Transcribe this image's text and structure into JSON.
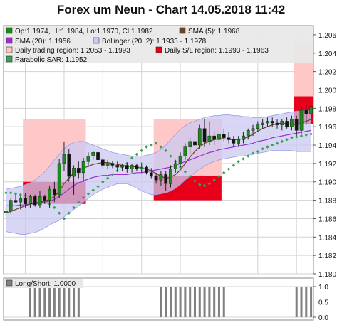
{
  "page": {
    "title": "Forex um Neun - Chart 14.05.2018 11:42"
  },
  "colors": {
    "plot_bg": "#ffffff",
    "frame_bg": "#e8e8e8",
    "grid": "#d3d3d3",
    "candle_up": "#1a8a1a",
    "candle_down": "#111111",
    "sma5": "#6b4226",
    "sma20": "#9b30d0",
    "bollinger_fill": "#c9c9f2",
    "bollinger_edge": "#9a9ae6",
    "trading_region": "#ffc8c8",
    "sl_region": "#e8001a",
    "sar": "#3aa05a",
    "longshort": "#808080"
  },
  "chart_data": [
    {
      "type": "candlestick",
      "title": "Forex um Neun - Chart 14.05.2018 11:42",
      "legend": {
        "ohlc": "Op:1.1974, Hi:1.1984, Lo:1.1970, Cl:1.1982",
        "sma5": "SMA (5): 1.1968",
        "sma20": "SMA (20): 1.1956",
        "bollinger": "Bollinger (20, 2): 1.1933 - 1.1978",
        "trading_region": "Daily trading region: 1.2053 - 1.1993",
        "sl_region": "Daily S/L region: 1.1993 - 1.1963",
        "sar": "Parabolic SAR: 1.1952"
      },
      "ylim": [
        1.18,
        1.207
      ],
      "yticks": [
        "1.180",
        "1.182",
        "1.184",
        "1.186",
        "1.188",
        "1.190",
        "1.192",
        "1.194",
        "1.196",
        "1.198",
        "1.200",
        "1.202",
        "1.204",
        "1.206"
      ],
      "grid": true,
      "candles": [
        {
          "o": 1.1866,
          "h": 1.1873,
          "l": 1.1862,
          "c": 1.1868
        },
        {
          "o": 1.1868,
          "h": 1.1883,
          "l": 1.1865,
          "c": 1.188
        },
        {
          "o": 1.188,
          "h": 1.1886,
          "l": 1.1877,
          "c": 1.1878
        },
        {
          "o": 1.1878,
          "h": 1.1885,
          "l": 1.187,
          "c": 1.1882
        },
        {
          "o": 1.1882,
          "h": 1.1888,
          "l": 1.1872,
          "c": 1.1876
        },
        {
          "o": 1.1876,
          "h": 1.1886,
          "l": 1.1872,
          "c": 1.1884
        },
        {
          "o": 1.1884,
          "h": 1.1886,
          "l": 1.1873,
          "c": 1.1875
        },
        {
          "o": 1.1875,
          "h": 1.189,
          "l": 1.1872,
          "c": 1.1884
        },
        {
          "o": 1.1884,
          "h": 1.1886,
          "l": 1.1876,
          "c": 1.188
        },
        {
          "o": 1.188,
          "h": 1.1896,
          "l": 1.1872,
          "c": 1.1892
        },
        {
          "o": 1.1892,
          "h": 1.19,
          "l": 1.1878,
          "c": 1.1886
        },
        {
          "o": 1.1886,
          "h": 1.1925,
          "l": 1.1882,
          "c": 1.192
        },
        {
          "o": 1.192,
          "h": 1.1944,
          "l": 1.1912,
          "c": 1.193
        },
        {
          "o": 1.193,
          "h": 1.1936,
          "l": 1.19,
          "c": 1.1906
        },
        {
          "o": 1.1906,
          "h": 1.1918,
          "l": 1.1886,
          "c": 1.1915
        },
        {
          "o": 1.1915,
          "h": 1.1922,
          "l": 1.1904,
          "c": 1.191
        },
        {
          "o": 1.191,
          "h": 1.1926,
          "l": 1.19,
          "c": 1.1922
        },
        {
          "o": 1.1922,
          "h": 1.1932,
          "l": 1.1916,
          "c": 1.1928
        },
        {
          "o": 1.1928,
          "h": 1.1934,
          "l": 1.1924,
          "c": 1.1932
        },
        {
          "o": 1.1932,
          "h": 1.1934,
          "l": 1.192,
          "c": 1.1924
        },
        {
          "o": 1.1924,
          "h": 1.1926,
          "l": 1.1914,
          "c": 1.1918
        },
        {
          "o": 1.1918,
          "h": 1.1924,
          "l": 1.1914,
          "c": 1.192
        },
        {
          "o": 1.192,
          "h": 1.1923,
          "l": 1.1915,
          "c": 1.1918
        },
        {
          "o": 1.1918,
          "h": 1.1922,
          "l": 1.1912,
          "c": 1.1916
        },
        {
          "o": 1.1916,
          "h": 1.192,
          "l": 1.1912,
          "c": 1.1918
        },
        {
          "o": 1.1918,
          "h": 1.1921,
          "l": 1.191,
          "c": 1.1914
        },
        {
          "o": 1.1914,
          "h": 1.192,
          "l": 1.191,
          "c": 1.1918
        },
        {
          "o": 1.1918,
          "h": 1.192,
          "l": 1.1912,
          "c": 1.1914
        },
        {
          "o": 1.1914,
          "h": 1.1921,
          "l": 1.191,
          "c": 1.1916
        },
        {
          "o": 1.1916,
          "h": 1.1918,
          "l": 1.1908,
          "c": 1.191
        },
        {
          "o": 1.191,
          "h": 1.1915,
          "l": 1.1904,
          "c": 1.1906
        },
        {
          "o": 1.1906,
          "h": 1.191,
          "l": 1.1898,
          "c": 1.1902
        },
        {
          "o": 1.1902,
          "h": 1.1912,
          "l": 1.1896,
          "c": 1.1908
        },
        {
          "o": 1.1908,
          "h": 1.1912,
          "l": 1.189,
          "c": 1.1898
        },
        {
          "o": 1.1898,
          "h": 1.1918,
          "l": 1.1894,
          "c": 1.1914
        },
        {
          "o": 1.1914,
          "h": 1.1924,
          "l": 1.191,
          "c": 1.192
        },
        {
          "o": 1.192,
          "h": 1.1932,
          "l": 1.1916,
          "c": 1.1928
        },
        {
          "o": 1.1928,
          "h": 1.1942,
          "l": 1.1924,
          "c": 1.1938
        },
        {
          "o": 1.1938,
          "h": 1.1948,
          "l": 1.193,
          "c": 1.1944
        },
        {
          "o": 1.1944,
          "h": 1.195,
          "l": 1.1934,
          "c": 1.194
        },
        {
          "o": 1.194,
          "h": 1.1962,
          "l": 1.1936,
          "c": 1.1958
        },
        {
          "o": 1.1958,
          "h": 1.1968,
          "l": 1.1938,
          "c": 1.1944
        },
        {
          "o": 1.1944,
          "h": 1.1966,
          "l": 1.194,
          "c": 1.195
        },
        {
          "o": 1.195,
          "h": 1.1954,
          "l": 1.194,
          "c": 1.1946
        },
        {
          "o": 1.1946,
          "h": 1.1956,
          "l": 1.1942,
          "c": 1.1952
        },
        {
          "o": 1.1952,
          "h": 1.1958,
          "l": 1.1944,
          "c": 1.1948
        },
        {
          "o": 1.1948,
          "h": 1.1954,
          "l": 1.1942,
          "c": 1.1946
        },
        {
          "o": 1.1946,
          "h": 1.195,
          "l": 1.1938,
          "c": 1.1942
        },
        {
          "o": 1.1942,
          "h": 1.195,
          "l": 1.1938,
          "c": 1.1946
        },
        {
          "o": 1.1946,
          "h": 1.1954,
          "l": 1.1942,
          "c": 1.195
        },
        {
          "o": 1.195,
          "h": 1.1958,
          "l": 1.1946,
          "c": 1.1956
        },
        {
          "o": 1.1956,
          "h": 1.1962,
          "l": 1.195,
          "c": 1.1958
        },
        {
          "o": 1.1958,
          "h": 1.1966,
          "l": 1.1954,
          "c": 1.1962
        },
        {
          "o": 1.1962,
          "h": 1.1968,
          "l": 1.1958,
          "c": 1.1964
        },
        {
          "o": 1.1964,
          "h": 1.197,
          "l": 1.196,
          "c": 1.1966
        },
        {
          "o": 1.1966,
          "h": 1.197,
          "l": 1.196,
          "c": 1.1964
        },
        {
          "o": 1.1964,
          "h": 1.1968,
          "l": 1.1958,
          "c": 1.1962
        },
        {
          "o": 1.1962,
          "h": 1.1968,
          "l": 1.1956,
          "c": 1.1966
        },
        {
          "o": 1.1966,
          "h": 1.197,
          "l": 1.1958,
          "c": 1.196
        },
        {
          "o": 1.196,
          "h": 1.1972,
          "l": 1.1956,
          "c": 1.1968
        },
        {
          "o": 1.1968,
          "h": 1.1972,
          "l": 1.195,
          "c": 1.1956
        },
        {
          "o": 1.1956,
          "h": 1.1982,
          "l": 1.1952,
          "c": 1.1978
        },
        {
          "o": 1.1978,
          "h": 1.1984,
          "l": 1.1962,
          "c": 1.1974
        },
        {
          "o": 1.1974,
          "h": 1.1984,
          "l": 1.197,
          "c": 1.1982
        }
      ],
      "sma5": [
        1.1866,
        1.1868,
        1.187,
        1.1872,
        1.1874,
        1.1876,
        1.1877,
        1.1878,
        1.1879,
        1.1881,
        1.1884,
        1.189,
        1.1898,
        1.1904,
        1.191,
        1.1913,
        1.1915,
        1.1917,
        1.1919,
        1.192,
        1.1921,
        1.1921,
        1.192,
        1.1919,
        1.1918,
        1.1917,
        1.1917,
        1.1916,
        1.1915,
        1.1914,
        1.1912,
        1.1909,
        1.1906,
        1.1904,
        1.1905,
        1.1908,
        1.1913,
        1.192,
        1.1927,
        1.1933,
        1.1938,
        1.1942,
        1.1944,
        1.1946,
        1.1947,
        1.1947,
        1.1946,
        1.1946,
        1.1946,
        1.1947,
        1.1949,
        1.1952,
        1.1955,
        1.1958,
        1.196,
        1.1962,
        1.1963,
        1.1964,
        1.1963,
        1.1963,
        1.1962,
        1.1964,
        1.1966,
        1.1968
      ],
      "sma20": [
        1.1874,
        1.1874,
        1.1874,
        1.1875,
        1.1875,
        1.1876,
        1.1876,
        1.1877,
        1.1878,
        1.1879,
        1.1881,
        1.1884,
        1.1888,
        1.1892,
        1.1896,
        1.1899,
        1.1901,
        1.1903,
        1.1905,
        1.1906,
        1.1907,
        1.1907,
        1.1908,
        1.1908,
        1.1908,
        1.1908,
        1.1909,
        1.191,
        1.191,
        1.1911,
        1.1912,
        1.1913,
        1.1914,
        1.1915,
        1.1916,
        1.1918,
        1.192,
        1.1922,
        1.1924,
        1.1926,
        1.1928,
        1.193,
        1.1932,
        1.1933,
        1.1935,
        1.1936,
        1.1937,
        1.1938,
        1.1939,
        1.194,
        1.1941,
        1.1942,
        1.1944,
        1.1945,
        1.1946,
        1.1948,
        1.1949,
        1.195,
        1.1951,
        1.1952,
        1.1953,
        1.1954,
        1.1955,
        1.1956
      ],
      "boll_upper": [
        1.1892,
        1.1893,
        1.1894,
        1.1895,
        1.1897,
        1.1899,
        1.1902,
        1.1906,
        1.1911,
        1.1917,
        1.1924,
        1.193,
        1.1936,
        1.194,
        1.1943,
        1.1944,
        1.1944,
        1.1942,
        1.194,
        1.1938,
        1.1936,
        1.1934,
        1.1932,
        1.1931,
        1.193,
        1.1929,
        1.1928,
        1.1928,
        1.1928,
        1.1929,
        1.193,
        1.1932,
        1.1935,
        1.194,
        1.1946,
        1.1952,
        1.1957,
        1.1961,
        1.1964,
        1.1966,
        1.1968,
        1.197,
        1.1971,
        1.1972,
        1.1972,
        1.1973,
        1.1973,
        1.1972,
        1.1972,
        1.1971,
        1.1971,
        1.197,
        1.197,
        1.197,
        1.1971,
        1.1972,
        1.1973,
        1.1974,
        1.1975,
        1.1976,
        1.1977,
        1.1977,
        1.1978,
        1.1978
      ],
      "boll_lower": [
        1.1846,
        1.1845,
        1.1844,
        1.1843,
        1.1843,
        1.1844,
        1.1845,
        1.1847,
        1.185,
        1.1853,
        1.1856,
        1.1858,
        1.1862,
        1.1866,
        1.187,
        1.1874,
        1.1878,
        1.1882,
        1.1886,
        1.1889,
        1.1892,
        1.1894,
        1.1896,
        1.1898,
        1.1898,
        1.1898,
        1.1896,
        1.1893,
        1.189,
        1.1888,
        1.1886,
        1.1886,
        1.1887,
        1.1888,
        1.189,
        1.1893,
        1.1897,
        1.1902,
        1.1906,
        1.191,
        1.1914,
        1.1917,
        1.192,
        1.1922,
        1.1924,
        1.1925,
        1.1926,
        1.1927,
        1.1928,
        1.1928,
        1.1929,
        1.193,
        1.1931,
        1.1932,
        1.1933,
        1.1934,
        1.1934,
        1.1934,
        1.1934,
        1.1934,
        1.1933,
        1.1933,
        1.1933,
        1.1933
      ],
      "sar": [
        1.1888,
        1.1888,
        1.1887,
        1.1886,
        1.1885,
        1.1884,
        1.1883,
        1.1881,
        1.1879,
        1.1876,
        1.1872,
        1.1866,
        1.186,
        1.1866,
        1.1872,
        1.1878,
        1.1883,
        1.1887,
        1.1891,
        1.1895,
        1.19,
        1.1904,
        1.1908,
        1.1912,
        1.1916,
        1.192,
        1.1926,
        1.193,
        1.1934,
        1.1938,
        1.194,
        1.1942,
        1.1938,
        1.1934,
        1.1928,
        1.1922,
        1.1916,
        1.1911,
        1.1906,
        1.1901,
        1.1897,
        1.1896,
        1.1898,
        1.1902,
        1.1906,
        1.191,
        1.1914,
        1.1918,
        1.1922,
        1.1925,
        1.1928,
        1.1931,
        1.1933,
        1.1936,
        1.1938,
        1.194,
        1.1942,
        1.1944,
        1.1946,
        1.1948,
        1.1949,
        1.195,
        1.1951,
        1.1952
      ],
      "trading_regions": [
        {
          "from": 4,
          "to": 16,
          "low": 1.1888,
          "high": 1.1968
        },
        {
          "from": 31,
          "to": 44,
          "low": 1.188,
          "high": 1.1968
        },
        {
          "from": 60,
          "to": 63,
          "low": 1.1993,
          "high": 1.2053
        }
      ],
      "sl_regions": [
        {
          "from": 4,
          "to": 16,
          "low": 1.1876,
          "high": 1.19
        },
        {
          "from": 31,
          "to": 44,
          "low": 1.188,
          "high": 1.1906
        },
        {
          "from": 60,
          "to": 63,
          "low": 1.1963,
          "high": 1.1993
        }
      ]
    },
    {
      "type": "bar",
      "legend": {
        "longshort": "Long/Short: 1.0000"
      },
      "ylim": [
        0,
        1
      ],
      "yticks": [
        "0.0",
        "0.5",
        "1.0"
      ],
      "grid": true,
      "values": [
        0,
        0,
        0,
        0,
        0,
        1,
        1,
        1,
        1,
        1,
        1,
        1,
        1,
        1,
        1,
        1,
        0,
        0,
        0,
        0,
        0,
        0,
        0,
        0,
        0,
        0,
        0,
        0,
        0,
        0,
        0,
        0,
        1,
        1,
        1,
        1,
        1,
        1,
        1,
        1,
        1,
        1,
        1,
        1,
        1,
        1,
        0,
        0,
        0,
        0,
        0,
        0,
        0,
        0,
        0,
        0,
        0,
        0,
        0,
        0,
        1,
        1,
        1,
        1
      ]
    }
  ]
}
